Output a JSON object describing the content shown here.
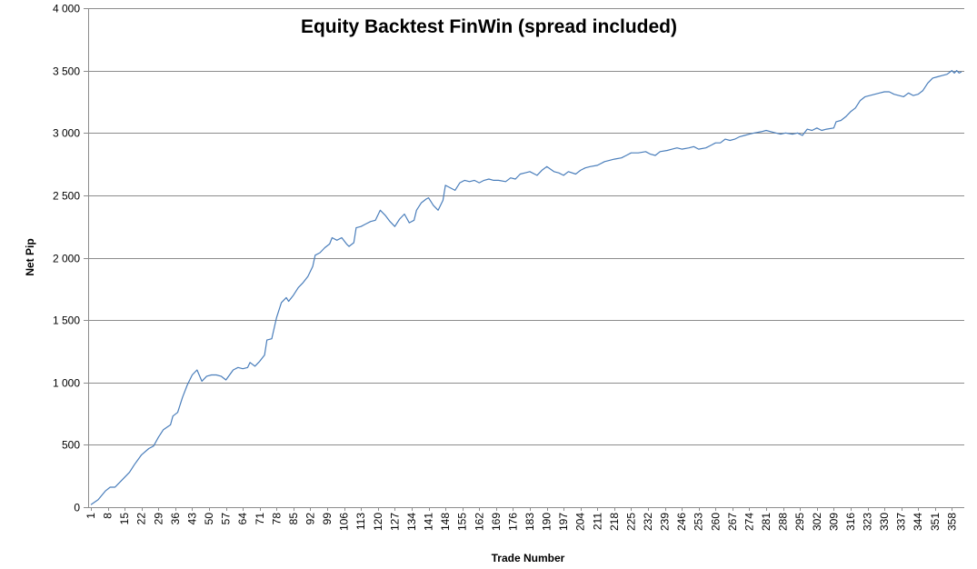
{
  "chart_data": {
    "type": "line",
    "title": "Equity Backtest FinWin (spread included)",
    "xlabel": "Trade Number",
    "ylabel": "Net Pip",
    "ylim": [
      0,
      4000
    ],
    "xlim": [
      1,
      362
    ],
    "y_ticks": [
      {
        "value": 0,
        "label": "0"
      },
      {
        "value": 500,
        "label": "500"
      },
      {
        "value": 1000,
        "label": "1 000"
      },
      {
        "value": 1500,
        "label": "1 500"
      },
      {
        "value": 2000,
        "label": "2 000"
      },
      {
        "value": 2500,
        "label": "2 500"
      },
      {
        "value": 3000,
        "label": "3 000"
      },
      {
        "value": 3500,
        "label": "3 500"
      },
      {
        "value": 4000,
        "label": "4 000"
      }
    ],
    "x_ticks": [
      "1",
      "8",
      "15",
      "22",
      "29",
      "36",
      "43",
      "50",
      "57",
      "64",
      "71",
      "78",
      "85",
      "92",
      "99",
      "106",
      "113",
      "120",
      "127",
      "134",
      "141",
      "148",
      "155",
      "162",
      "169",
      "176",
      "183",
      "190",
      "197",
      "204",
      "211",
      "218",
      "225",
      "232",
      "239",
      "246",
      "253",
      "260",
      "267",
      "274",
      "281",
      "288",
      "295",
      "302",
      "309",
      "316",
      "323",
      "330",
      "337",
      "344",
      "351",
      "358"
    ],
    "grid": "horizontal",
    "line_color": "#4a7ebb",
    "series": [
      {
        "points": [
          [
            1,
            20
          ],
          [
            4,
            60
          ],
          [
            7,
            130
          ],
          [
            9,
            160
          ],
          [
            11,
            160
          ],
          [
            14,
            220
          ],
          [
            17,
            280
          ],
          [
            19,
            340
          ],
          [
            22,
            420
          ],
          [
            25,
            470
          ],
          [
            27,
            490
          ],
          [
            29,
            560
          ],
          [
            31,
            620
          ],
          [
            34,
            660
          ],
          [
            35,
            730
          ],
          [
            37,
            760
          ],
          [
            39,
            880
          ],
          [
            41,
            980
          ],
          [
            43,
            1060
          ],
          [
            45,
            1100
          ],
          [
            47,
            1010
          ],
          [
            49,
            1050
          ],
          [
            51,
            1060
          ],
          [
            53,
            1060
          ],
          [
            55,
            1050
          ],
          [
            57,
            1020
          ],
          [
            60,
            1100
          ],
          [
            62,
            1120
          ],
          [
            64,
            1110
          ],
          [
            66,
            1120
          ],
          [
            67,
            1160
          ],
          [
            69,
            1130
          ],
          [
            71,
            1170
          ],
          [
            73,
            1220
          ],
          [
            74,
            1340
          ],
          [
            76,
            1350
          ],
          [
            78,
            1520
          ],
          [
            80,
            1640
          ],
          [
            82,
            1680
          ],
          [
            83,
            1650
          ],
          [
            85,
            1700
          ],
          [
            87,
            1760
          ],
          [
            89,
            1800
          ],
          [
            91,
            1850
          ],
          [
            93,
            1930
          ],
          [
            94,
            2020
          ],
          [
            96,
            2040
          ],
          [
            98,
            2080
          ],
          [
            100,
            2110
          ],
          [
            101,
            2160
          ],
          [
            103,
            2140
          ],
          [
            105,
            2160
          ],
          [
            107,
            2110
          ],
          [
            108,
            2090
          ],
          [
            110,
            2120
          ],
          [
            111,
            2240
          ],
          [
            113,
            2250
          ],
          [
            115,
            2270
          ],
          [
            117,
            2290
          ],
          [
            119,
            2300
          ],
          [
            121,
            2380
          ],
          [
            123,
            2340
          ],
          [
            125,
            2290
          ],
          [
            127,
            2250
          ],
          [
            129,
            2310
          ],
          [
            131,
            2350
          ],
          [
            133,
            2280
          ],
          [
            135,
            2300
          ],
          [
            136,
            2380
          ],
          [
            138,
            2440
          ],
          [
            140,
            2470
          ],
          [
            141,
            2480
          ],
          [
            143,
            2420
          ],
          [
            145,
            2380
          ],
          [
            147,
            2460
          ],
          [
            148,
            2580
          ],
          [
            150,
            2560
          ],
          [
            152,
            2540
          ],
          [
            154,
            2600
          ],
          [
            156,
            2620
          ],
          [
            158,
            2610
          ],
          [
            160,
            2620
          ],
          [
            162,
            2600
          ],
          [
            164,
            2620
          ],
          [
            166,
            2630
          ],
          [
            168,
            2620
          ],
          [
            170,
            2620
          ],
          [
            173,
            2610
          ],
          [
            175,
            2640
          ],
          [
            177,
            2630
          ],
          [
            179,
            2670
          ],
          [
            181,
            2680
          ],
          [
            183,
            2690
          ],
          [
            186,
            2660
          ],
          [
            188,
            2700
          ],
          [
            190,
            2730
          ],
          [
            193,
            2690
          ],
          [
            195,
            2680
          ],
          [
            197,
            2660
          ],
          [
            199,
            2690
          ],
          [
            202,
            2670
          ],
          [
            204,
            2700
          ],
          [
            206,
            2720
          ],
          [
            208,
            2730
          ],
          [
            211,
            2740
          ],
          [
            214,
            2770
          ],
          [
            216,
            2780
          ],
          [
            218,
            2790
          ],
          [
            221,
            2800
          ],
          [
            223,
            2820
          ],
          [
            225,
            2840
          ],
          [
            228,
            2840
          ],
          [
            231,
            2850
          ],
          [
            233,
            2830
          ],
          [
            235,
            2820
          ],
          [
            237,
            2850
          ],
          [
            240,
            2860
          ],
          [
            242,
            2870
          ],
          [
            244,
            2880
          ],
          [
            246,
            2870
          ],
          [
            249,
            2880
          ],
          [
            251,
            2890
          ],
          [
            253,
            2870
          ],
          [
            256,
            2880
          ],
          [
            258,
            2900
          ],
          [
            260,
            2920
          ],
          [
            262,
            2920
          ],
          [
            264,
            2950
          ],
          [
            266,
            2940
          ],
          [
            268,
            2950
          ],
          [
            270,
            2970
          ],
          [
            272,
            2980
          ],
          [
            274,
            2990
          ],
          [
            276,
            3000
          ],
          [
            279,
            3010
          ],
          [
            281,
            3020
          ],
          [
            283,
            3010
          ],
          [
            285,
            3000
          ],
          [
            287,
            2990
          ],
          [
            289,
            3000
          ],
          [
            292,
            2990
          ],
          [
            294,
            3000
          ],
          [
            296,
            2980
          ],
          [
            298,
            3030
          ],
          [
            300,
            3020
          ],
          [
            302,
            3040
          ],
          [
            304,
            3020
          ],
          [
            306,
            3030
          ],
          [
            309,
            3040
          ],
          [
            310,
            3090
          ],
          [
            312,
            3100
          ],
          [
            314,
            3130
          ],
          [
            316,
            3170
          ],
          [
            318,
            3200
          ],
          [
            320,
            3260
          ],
          [
            322,
            3290
          ],
          [
            324,
            3300
          ],
          [
            326,
            3310
          ],
          [
            328,
            3320
          ],
          [
            330,
            3330
          ],
          [
            332,
            3330
          ],
          [
            334,
            3310
          ],
          [
            336,
            3300
          ],
          [
            338,
            3290
          ],
          [
            340,
            3320
          ],
          [
            342,
            3300
          ],
          [
            344,
            3310
          ],
          [
            346,
            3340
          ],
          [
            348,
            3400
          ],
          [
            350,
            3440
          ],
          [
            352,
            3450
          ],
          [
            354,
            3460
          ],
          [
            356,
            3470
          ],
          [
            358,
            3500
          ],
          [
            359,
            3480
          ],
          [
            360,
            3500
          ],
          [
            361,
            3480
          ],
          [
            362,
            3490
          ]
        ]
      }
    ]
  }
}
